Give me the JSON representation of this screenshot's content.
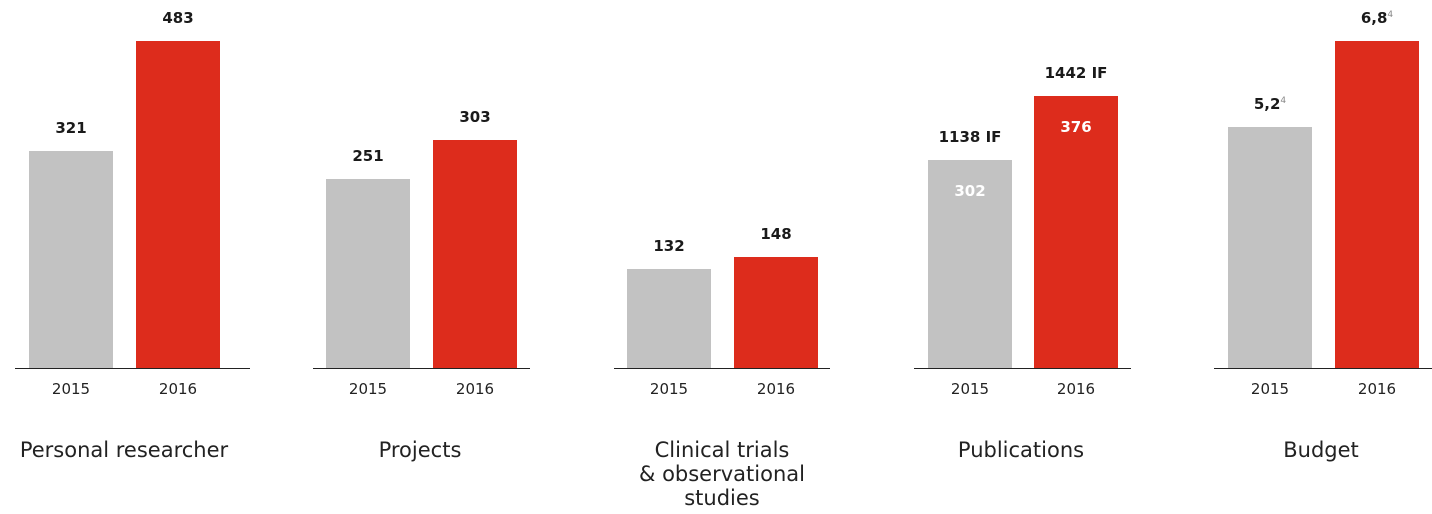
{
  "colors": {
    "y2015": "#c2c2c2",
    "y2016": "#dd2c1c",
    "axis": "#222222"
  },
  "chart_data": [
    {
      "type": "bar",
      "title": "Personal researcher",
      "title_lines": [
        "Personal researcher"
      ],
      "categories": [
        "2015",
        "2016"
      ],
      "values": [
        321,
        483
      ],
      "labels": [
        {
          "text": "321",
          "sup": ""
        },
        {
          "text": "483",
          "sup": ""
        }
      ],
      "inner_labels": [
        "",
        ""
      ]
    },
    {
      "type": "bar",
      "title": "Projects",
      "title_lines": [
        "Projects"
      ],
      "categories": [
        "2015",
        "2016"
      ],
      "values": [
        251,
        303
      ],
      "labels": [
        {
          "text": "251",
          "sup": ""
        },
        {
          "text": "303",
          "sup": ""
        }
      ],
      "inner_labels": [
        "",
        ""
      ]
    },
    {
      "type": "bar",
      "title": "Clinical trials & observational studies",
      "title_lines": [
        "Clinical trials",
        "& observational",
        "studies"
      ],
      "categories": [
        "2015",
        "2016"
      ],
      "values": [
        132,
        148
      ],
      "labels": [
        {
          "text": "132",
          "sup": ""
        },
        {
          "text": "148",
          "sup": ""
        }
      ],
      "inner_labels": [
        "",
        ""
      ]
    },
    {
      "type": "bar",
      "title": "Publications",
      "title_lines": [
        "Publications"
      ],
      "categories": [
        "2015",
        "2016"
      ],
      "values": [
        302,
        376
      ],
      "labels": [
        {
          "text": "1138 IF",
          "sup": ""
        },
        {
          "text": "1442 IF",
          "sup": ""
        }
      ],
      "inner_labels": [
        "302",
        "376"
      ]
    },
    {
      "type": "bar",
      "title": "Budget",
      "title_lines": [
        "Budget"
      ],
      "categories": [
        "2015",
        "2016"
      ],
      "values": [
        5.2,
        6.8
      ],
      "labels": [
        {
          "text": "5,2",
          "sup": "4"
        },
        {
          "text": "6,8",
          "sup": "4"
        }
      ],
      "inner_labels": [
        "",
        ""
      ]
    }
  ]
}
